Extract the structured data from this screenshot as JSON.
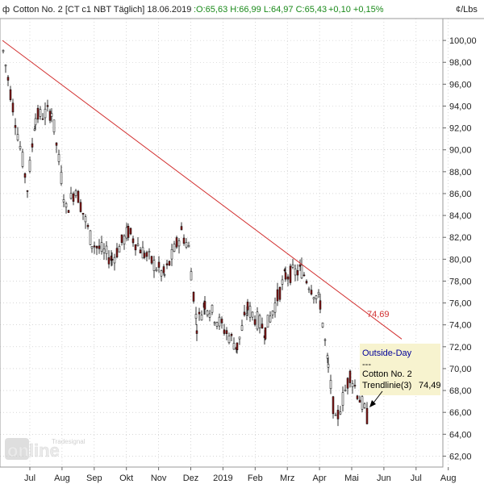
{
  "header": {
    "symbol": "Cotton No. 2 [CT c1 NBT",
    "interval": "Täglich]",
    "date": "18.06.2019",
    "ohlc": ":O:65,63 H:66,99 L:64,97 C:65,43",
    "change": "+0,10 +0,15%",
    "unit": "¢/Lbs"
  },
  "watermark": {
    "brand": "Tradesignal",
    "product": "online"
  },
  "chart_data": {
    "type": "candlestick",
    "title": "Cotton No. 2 [CT c1 NBT Täglich]",
    "ylabel": "¢/Lbs",
    "ylim": [
      61,
      102
    ],
    "yticks": [
      "100,00",
      "98,00",
      "96,00",
      "94,00",
      "92,00",
      "90,00",
      "88,00",
      "86,00",
      "84,00",
      "82,00",
      "80,00",
      "78,00",
      "76,00",
      "74,00",
      "72,00",
      "70,00",
      "68,00",
      "66,00",
      "64,00",
      "62,00"
    ],
    "xticks": [
      "Jul",
      "Aug",
      "Sep",
      "Okt",
      "Nov",
      "Dez",
      "2019",
      "Feb",
      "Mrz",
      "Apr",
      "Mai",
      "Jun",
      "Jul",
      "Aug"
    ],
    "grid": true,
    "price_path": [
      [
        "Jun",
        99.0
      ],
      [
        "Jul",
        86.5
      ],
      [
        "Jul",
        93.0
      ],
      [
        "Aug",
        93.5
      ],
      [
        "Aug",
        84.5
      ],
      [
        "Sep",
        86.5
      ],
      [
        "Sep",
        81.5
      ],
      [
        "Okt",
        80.0
      ],
      [
        "Okt",
        82.5
      ],
      [
        "Nov",
        80.5
      ],
      [
        "Nov",
        78.5
      ],
      [
        "Dez",
        82.5
      ],
      [
        "Dez",
        81.0
      ],
      [
        "Dez",
        74.0
      ],
      [
        "2019",
        76.0
      ],
      [
        "Feb",
        72.0
      ],
      [
        "Feb",
        75.5
      ],
      [
        "Mrz",
        73.5
      ],
      [
        "Mrz",
        78.5
      ],
      [
        "Apr",
        79.0
      ],
      [
        "Apr",
        76.0
      ],
      [
        "Mai",
        70.0
      ],
      [
        "Mai",
        65.0
      ],
      [
        "Jun",
        69.5
      ],
      [
        "Jun",
        65.43
      ]
    ],
    "trendline": {
      "label": "74,69",
      "from": [
        "Jun",
        100.0
      ],
      "to": [
        "Jul",
        72.7
      ],
      "color": "#d23030"
    },
    "legend_box": {
      "title": "Outside-Day",
      "dashes": "---",
      "series": "Cotton No. 2",
      "trendline": "Trendlinie(3)",
      "trendline_value": "74,49"
    },
    "last_price": 65.43
  },
  "colors": {
    "up_candle": "#ffffff",
    "down_candle": "#8b1a1a",
    "candle_outline": "#000000",
    "trendline": "#d23030",
    "legend_bg": "#f7f3cf",
    "outside_day": "#000099",
    "grid": "#bfbfbf"
  }
}
